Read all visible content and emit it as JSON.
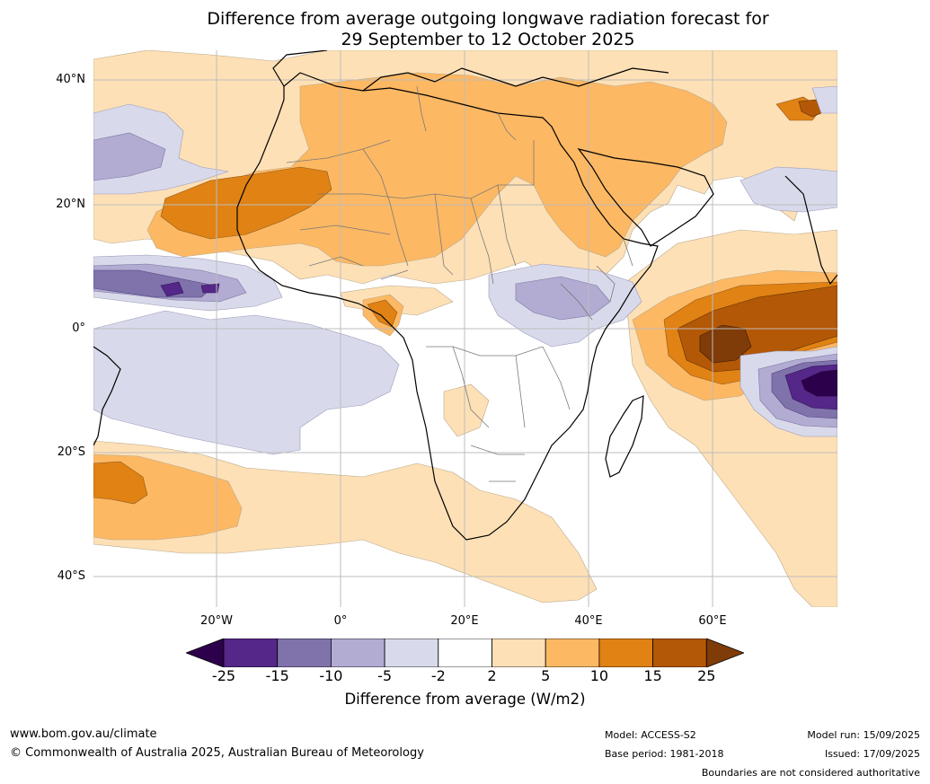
{
  "title_line1": "Difference from average outgoing longwave radiation forecast for",
  "title_line2": "29 September to 12 October 2025",
  "lat_labels": [
    "40°N",
    "20°N",
    "0°",
    "20°S",
    "40°S"
  ],
  "lon_labels": [
    "20°W",
    "0°",
    "20°E",
    "40°E",
    "60°E"
  ],
  "colorbar": {
    "ticks": [
      "-25",
      "-15",
      "-10",
      "-5",
      "-2",
      "2",
      "5",
      "10",
      "15",
      "25"
    ],
    "colors": [
      "#2d004b",
      "#542788",
      "#8073ac",
      "#b2abd2",
      "#d8daeb",
      "#ffffff",
      "#fee0b6",
      "#fdb863",
      "#e08214",
      "#b35806",
      "#7f3b08"
    ],
    "label": "Difference from average (W/m2)"
  },
  "footer": {
    "website": "www.bom.gov.au/climate",
    "copyright": "© Commonwealth of Australia 2025, Australian Bureau of Meteorology",
    "model": "Model: ACCESS-S2",
    "base_period": "Base period: 1981-2018",
    "model_run": "Model run: 15/09/2025",
    "issued": "Issued: 17/09/2025",
    "disclaimer": "Boundaries are not considered authoritative"
  }
}
